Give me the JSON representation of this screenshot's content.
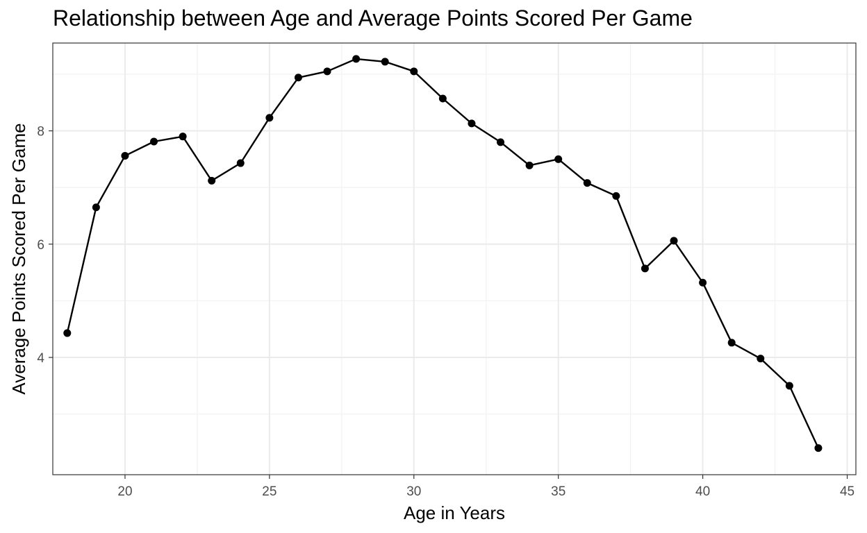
{
  "chart_data": {
    "type": "line",
    "title": "Relationship between Age and Average Points Scored Per Game",
    "xlabel": "Age in Years",
    "ylabel": "Average Points Scored Per Game",
    "xlim": [
      17.5,
      45.3
    ],
    "ylim": [
      1.93,
      9.55
    ],
    "x_ticks": [
      20,
      25,
      30,
      35,
      40,
      45
    ],
    "y_ticks": [
      4,
      6,
      8
    ],
    "grid": true,
    "colors": {
      "line": "#000000",
      "point": "#000000",
      "grid_major": "#ebebeb",
      "grid_minor": "#f2f2f2",
      "panel_border": "#333333"
    },
    "series": [
      {
        "x": [
          18,
          19,
          20,
          21,
          22,
          23,
          24,
          25,
          26,
          27,
          28,
          29,
          30,
          31,
          32,
          33,
          34,
          35,
          36,
          37,
          38,
          39,
          40,
          41,
          42,
          43,
          44
        ],
        "values": [
          4.43,
          6.65,
          7.56,
          7.81,
          7.9,
          7.12,
          7.43,
          8.23,
          8.94,
          9.05,
          9.27,
          9.22,
          9.05,
          8.57,
          8.13,
          7.8,
          7.39,
          7.5,
          7.08,
          6.85,
          5.57,
          6.06,
          5.32,
          4.26,
          3.98,
          3.5,
          2.4
        ]
      }
    ]
  }
}
